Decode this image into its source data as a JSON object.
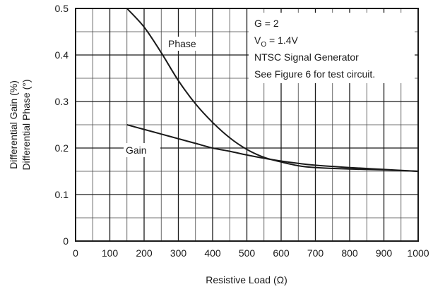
{
  "chart_data": {
    "type": "line",
    "title": "",
    "xlabel": "Resistive Load (Ω)",
    "ylabel_lines": [
      "Differential Gain (%)",
      "Differential Phase (°)"
    ],
    "xlim": [
      0,
      1000
    ],
    "ylim": [
      0,
      0.5
    ],
    "x_ticks": [
      "0",
      "100",
      "200",
      "300",
      "400",
      "500",
      "600",
      "700",
      "800",
      "900",
      "1000"
    ],
    "y_ticks": [
      "0",
      "0.1",
      "0.2",
      "0.3",
      "0.4",
      "0.5"
    ],
    "x_tick_values": [
      0,
      100,
      200,
      300,
      400,
      500,
      600,
      700,
      800,
      900,
      1000
    ],
    "y_tick_values": [
      0,
      0.1,
      0.2,
      0.3,
      0.4,
      0.5
    ],
    "minor_grid": true,
    "x_minor_step": 50,
    "y_minor_step": 0.05,
    "series": [
      {
        "name": "Phase",
        "x": [
          150,
          200,
          250,
          300,
          350,
          400,
          450,
          500,
          550,
          600,
          650,
          700,
          800,
          900,
          1000
        ],
        "y": [
          0.5,
          0.46,
          0.405,
          0.345,
          0.295,
          0.255,
          0.222,
          0.197,
          0.18,
          0.17,
          0.162,
          0.158,
          0.155,
          0.153,
          0.15
        ],
        "label_text": "Phase"
      },
      {
        "name": "Gain",
        "x": [
          150,
          200,
          250,
          300,
          350,
          400,
          450,
          500,
          550,
          600,
          650,
          700,
          800,
          900,
          1000
        ],
        "y": [
          0.25,
          0.24,
          0.23,
          0.22,
          0.21,
          0.2,
          0.193,
          0.185,
          0.178,
          0.172,
          0.167,
          0.163,
          0.158,
          0.154,
          0.15
        ],
        "label_text": "Gain"
      }
    ],
    "annotations": [
      "G = 2",
      "NTSC Signal Generator",
      "See Figure 6 for test circuit."
    ],
    "vo": {
      "prefix": "V",
      "sub": "O",
      "suffix": " = 1.4V"
    }
  }
}
